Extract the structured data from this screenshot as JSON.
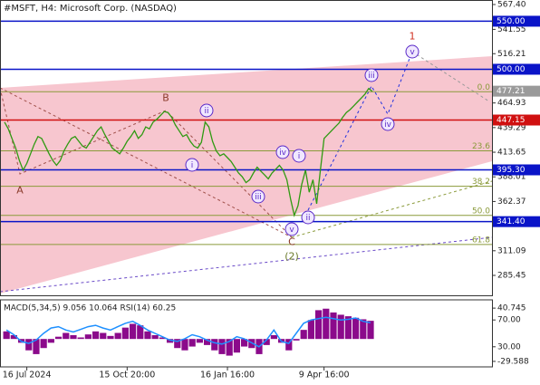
{
  "chart_data": {
    "type": "line",
    "title": "#MSFT, H4:  Microsoft Corp. (NASDAQ)",
    "color": "#2f9a12",
    "values": [
      445,
      438,
      428,
      418,
      405,
      395,
      402,
      412,
      422,
      430,
      428,
      420,
      412,
      405,
      400,
      405,
      415,
      422,
      428,
      430,
      425,
      420,
      418,
      424,
      430,
      436,
      440,
      432,
      425,
      418,
      415,
      412,
      418,
      425,
      430,
      436,
      428,
      432,
      440,
      438,
      445,
      448,
      452,
      456,
      455,
      450,
      442,
      436,
      430,
      432,
      425,
      420,
      418,
      424,
      445,
      440,
      425,
      415,
      410,
      412,
      408,
      404,
      398,
      392,
      388,
      382,
      385,
      392,
      398,
      394,
      390,
      386,
      392,
      396,
      400,
      395,
      385,
      365,
      348,
      358,
      380,
      395,
      372,
      385,
      360,
      395,
      428,
      432,
      436,
      440,
      444,
      450,
      455,
      458,
      462,
      466,
      470,
      474,
      480,
      477
    ],
    "xlim": [
      -1.22,
      131.2
    ],
    "xticks": [
      {
        "value": 6,
        "label": "16 Jul 2024"
      },
      {
        "value": 33,
        "label": "15 Oct 20:00"
      },
      {
        "value": 60,
        "label": "16 Jan 16:00"
      },
      {
        "value": 86,
        "label": "9 Apr 16:00"
      }
    ],
    "ylim": [
      264.7,
      572.1
    ],
    "yticks": [
      {
        "value": 567.4,
        "label": "567.40"
      },
      541.55,
      516.21,
      464.93,
      439.29,
      413.65,
      388.01,
      362.37,
      311.09,
      285.45
    ],
    "levels": [
      {
        "value": 550,
        "label": "550.00",
        "color": "#0a14c8"
      },
      {
        "value": 500,
        "label": "500.00",
        "color": "#0a14c8"
      },
      {
        "value": 447.15,
        "label": "447.15",
        "color": "#d01010"
      },
      {
        "value": 395.3,
        "label": "395.30",
        "color": "#0a14c8"
      },
      {
        "value": 341.4,
        "label": "341.40",
        "color": "#0a14c8"
      }
    ],
    "current": {
      "value": 477.21,
      "label": "477.21",
      "color": "#9a9a9a"
    },
    "fib": [
      {
        "value": 476.6,
        "label": "0.0"
      },
      {
        "value": 415.1,
        "label": "23.6"
      },
      {
        "value": 378.2,
        "label": "38.2"
      },
      {
        "value": 347.9,
        "label": "50.0"
      },
      {
        "value": 317.6,
        "label": "61.8"
      }
    ],
    "fib_color": "#8a9a3a",
    "waves": [
      "A",
      "B",
      "C",
      "(2)",
      "1",
      "i",
      "ii",
      "iii",
      "iv",
      "v",
      "i",
      "ii",
      "iii",
      "iv",
      "v"
    ],
    "indicator": {
      "title": "MACD(5,34,5) 9.056 10.064 RSI(14) 60.25",
      "macd": {
        "color": "#8b0a8b",
        "ylim": [
          -36.86,
          51.66
        ],
        "yticks": [
          40.745,
          -29.588
        ],
        "values": [
          10,
          5,
          -5,
          -15,
          -20,
          -12,
          -5,
          3,
          8,
          5,
          2,
          6,
          10,
          8,
          4,
          8,
          15,
          20,
          18,
          10,
          5,
          2,
          -5,
          -12,
          -15,
          -10,
          -5,
          -8,
          -15,
          -20,
          -22,
          -18,
          -10,
          -12,
          -20,
          -8,
          5,
          -5,
          -15,
          -2,
          12,
          25,
          38,
          40,
          35,
          32,
          30,
          28,
          26,
          24
        ]
      },
      "rsi": {
        "color": "#1e90ff",
        "ylim": [
          0,
          100
        ],
        "yticks": [
          {
            "value": 70,
            "label": "70.00"
          },
          {
            "value": 30,
            "label": "30.00"
          }
        ],
        "values": [
          55,
          48,
          38,
          35,
          40,
          50,
          58,
          60,
          55,
          52,
          56,
          60,
          62,
          58,
          55,
          60,
          65,
          68,
          62,
          55,
          50,
          45,
          40,
          38,
          42,
          48,
          45,
          40,
          36,
          34,
          38,
          45,
          42,
          36,
          30,
          40,
          55,
          38,
          35,
          50,
          65,
          70,
          72,
          74,
          72,
          70,
          71,
          73,
          68,
          66
        ]
      }
    }
  }
}
